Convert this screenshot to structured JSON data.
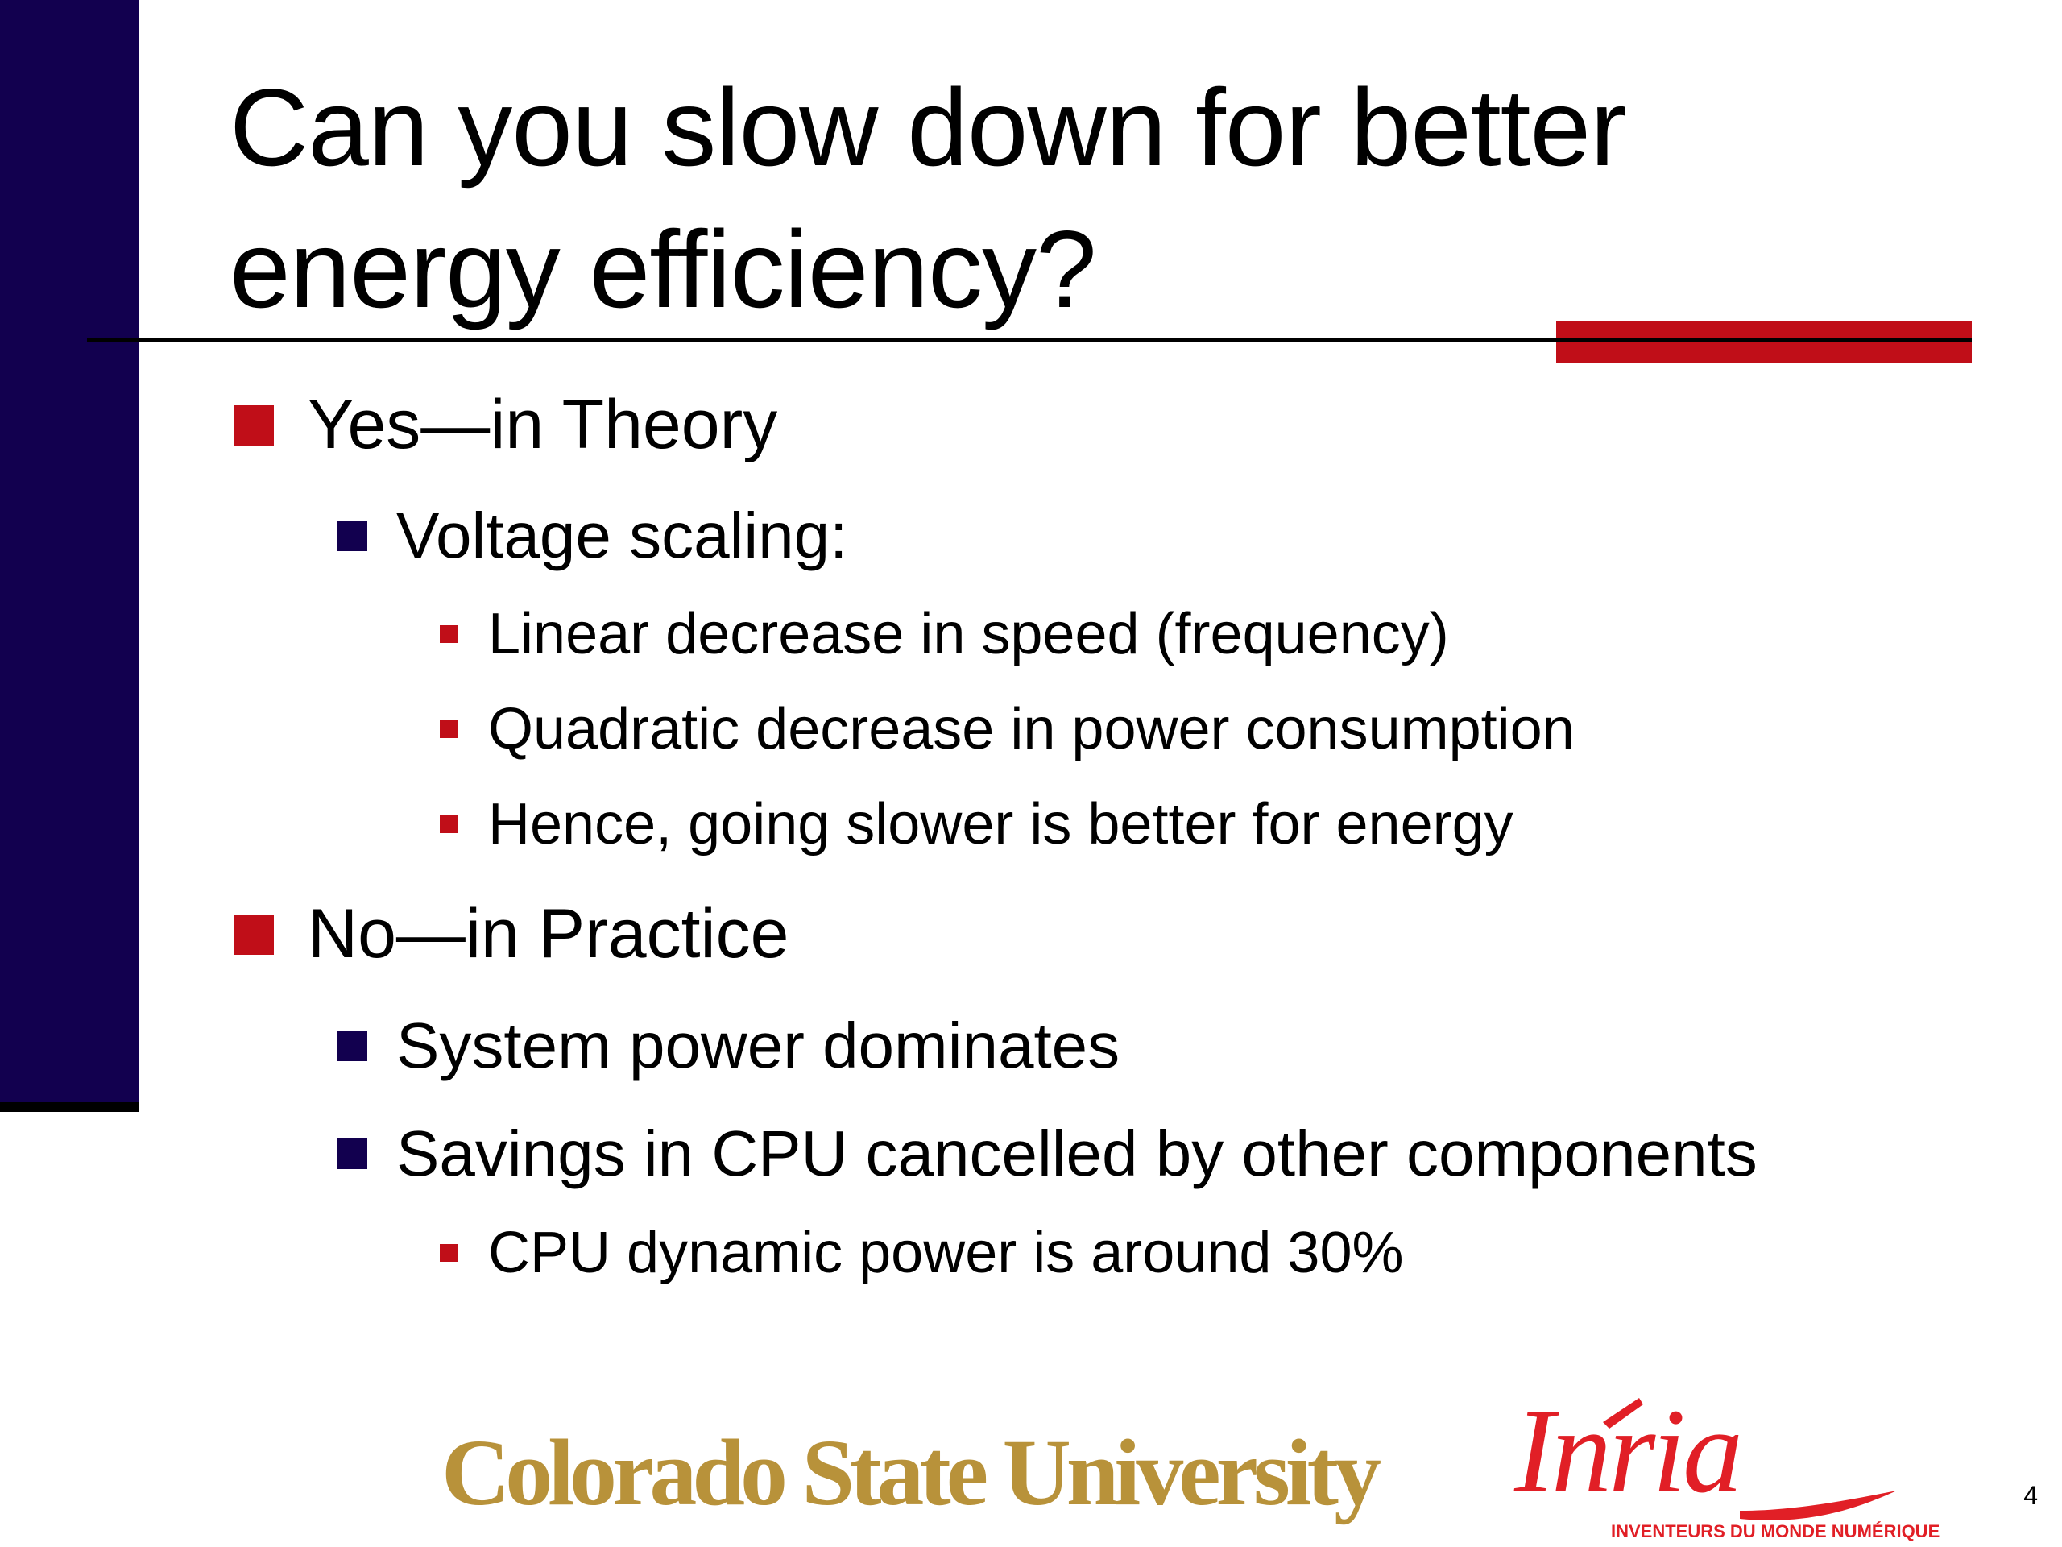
{
  "slide": {
    "title": "Can you slow down for better\nenergy efficiency?",
    "bullets": [
      {
        "level": 1,
        "text": "Yes—in Theory"
      },
      {
        "level": 2,
        "text": "Voltage scaling:"
      },
      {
        "level": 3,
        "text": "Linear decrease in speed (frequency)"
      },
      {
        "level": 3,
        "text": "Quadratic decrease in power consumption"
      },
      {
        "level": 3,
        "text": "Hence, going slower is better for energy"
      },
      {
        "level": 1,
        "text": "No—in Practice"
      },
      {
        "level": 2,
        "text": "System power dominates"
      },
      {
        "level": 2,
        "text": "Savings in CPU cancelled by other components"
      },
      {
        "level": 3,
        "text": "CPU dynamic power is around 30%"
      }
    ],
    "page_number": "4"
  },
  "footer": {
    "logo_csu": "Colorado State University",
    "logo_inria": "Inria",
    "logo_inria_tagline": "INVENTEURS DU MONDE NUMÉRIQUE"
  },
  "colors": {
    "sidebar": "#12004f",
    "accent_red": "#c00e18",
    "csu_gold": "#b8923a",
    "inria_red": "#e11f26"
  }
}
